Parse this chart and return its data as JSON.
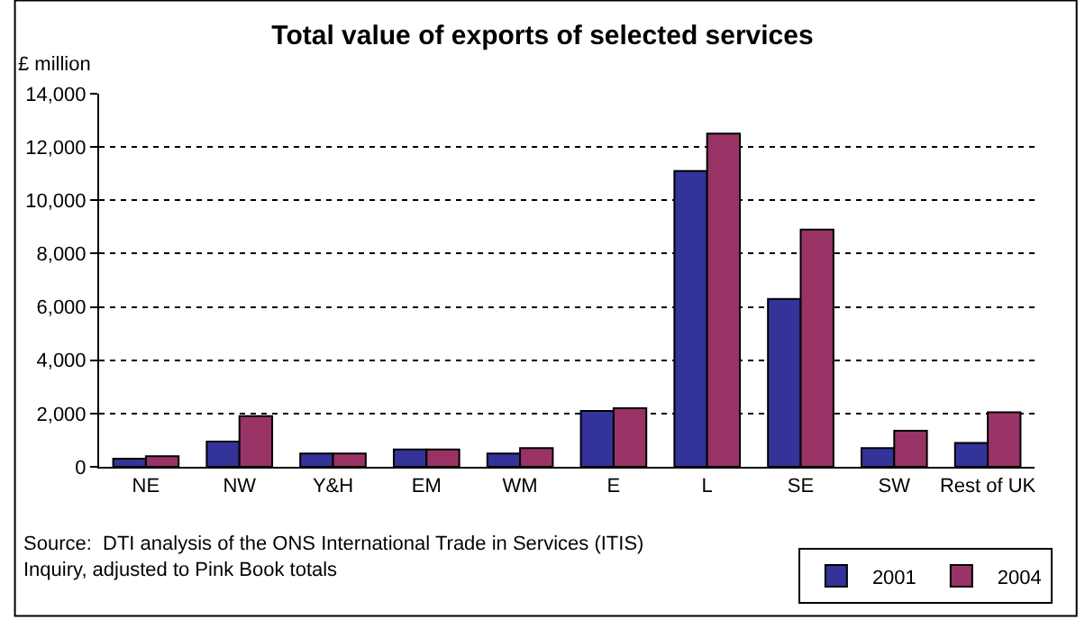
{
  "chart_data": {
    "type": "bar",
    "title": "Total value of exports of selected services",
    "ylabel": "£ million",
    "categories": [
      "NE",
      "NW",
      "Y&H",
      "EM",
      "WM",
      "E",
      "L",
      "SE",
      "SW",
      "Rest of UK"
    ],
    "series": [
      {
        "name": "2001",
        "color": "#333399",
        "values": [
          300,
          950,
          500,
          650,
          500,
          2100,
          11100,
          6300,
          700,
          900
        ]
      },
      {
        "name": "2004",
        "color": "#993366",
        "values": [
          400,
          1900,
          500,
          650,
          700,
          2200,
          12500,
          8900,
          1350,
          2050
        ]
      }
    ],
    "ylim": [
      0,
      14000
    ],
    "yticks": [
      {
        "value": 0,
        "label": "0"
      },
      {
        "value": 2000,
        "label": "2,000"
      },
      {
        "value": 4000,
        "label": "4,000"
      },
      {
        "value": 6000,
        "label": "6,000"
      },
      {
        "value": 8000,
        "label": "8,000"
      },
      {
        "value": 10000,
        "label": "10,000"
      },
      {
        "value": 12000,
        "label": "12,000"
      },
      {
        "value": 14000,
        "label": "14,000"
      }
    ],
    "grid": "y",
    "legend": "bottom right",
    "annotations": [
      "Source:  DTI analysis of the ONS International Trade in Services (ITIS)\nInquiry, adjusted to Pink Book totals"
    ]
  }
}
